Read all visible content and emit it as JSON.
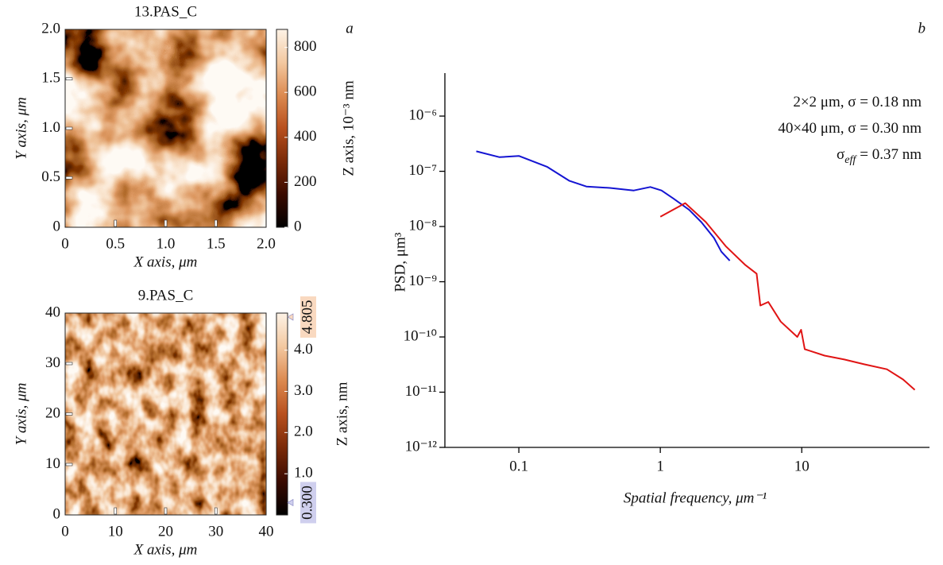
{
  "chart_data": [
    {
      "type": "heatmap",
      "title": "13.PAS_C",
      "panel_label": "a",
      "x_label": "X axis, μm",
      "y_label": "Y axis, μm",
      "xlim": [
        0,
        2
      ],
      "ylim": [
        0,
        2
      ],
      "xticks": [
        0,
        0.5,
        {
          "value": 1,
          "label": "1.0"
        },
        1.5,
        {
          "value": 2,
          "label": "2.0"
        }
      ],
      "yticks": [
        0,
        0.5,
        {
          "value": 1,
          "label": "1.0"
        },
        1.5,
        {
          "value": 2,
          "label": "2.0"
        }
      ],
      "colormap": [
        "#000000",
        "#3a0a00",
        "#7a2a08",
        "#b8501e",
        "#dc8a50",
        "#f3c8a0",
        "#fdf3e6"
      ],
      "colorbar": {
        "label": "Z axis, 10⁻³ nm",
        "zlim": [
          0,
          880
        ],
        "zticks": [
          0,
          200,
          400,
          600,
          800
        ]
      }
    },
    {
      "type": "heatmap",
      "title": "9.PAS_C",
      "x_label": "X axis, μm",
      "y_label": "Y axis, μm",
      "xlim": [
        0,
        40
      ],
      "ylim": [
        0,
        40
      ],
      "xticks": [
        0,
        10,
        20,
        30,
        40
      ],
      "yticks": [
        0,
        10,
        20,
        30,
        40
      ],
      "colormap": [
        "#000000",
        "#3a0a00",
        "#7a2a08",
        "#b8501e",
        "#dc8a50",
        "#f3c8a0",
        "#fdf3e6"
      ],
      "colorbar": {
        "label": "Z axis, nm",
        "zlim": [
          0,
          4.9
        ],
        "zticks": [
          {
            "value": 1,
            "label": "1.0"
          },
          {
            "value": 2,
            "label": "2.0"
          },
          {
            "value": 3,
            "label": "3.0"
          },
          {
            "value": 4,
            "label": "4.0"
          }
        ],
        "markers": [
          {
            "value": 4.805,
            "label": "4.805",
            "color": "#f9d9c0"
          },
          {
            "value": 0.3,
            "label": "0.300",
            "color": "#cfcfee"
          }
        ]
      }
    },
    {
      "type": "line",
      "panel_label": "b",
      "x_label": "Spatial frequency, μm⁻¹",
      "y_label": "PSD, μm³",
      "log_x": true,
      "log_y": true,
      "xlim": [
        0.03,
        80
      ],
      "ylim": [
        1e-12,
        6e-06
      ],
      "xticks": [
        0.1,
        1,
        10
      ],
      "yticks": [
        {
          "value": 1e-12,
          "label": "10⁻¹²"
        },
        {
          "value": 1e-11,
          "label": "10⁻¹¹"
        },
        {
          "value": 1e-10,
          "label": "10⁻¹⁰"
        },
        {
          "value": 1e-09,
          "label": "10⁻⁹"
        },
        {
          "value": 1e-08,
          "label": "10⁻⁸"
        },
        {
          "value": 1e-07,
          "label": "10⁻⁷"
        },
        {
          "value": 1e-06,
          "label": "10⁻⁶"
        }
      ],
      "series": [
        {
          "color": "#1414d2",
          "x": [
            0.05,
            0.073,
            0.1,
            0.159,
            0.228,
            0.3,
            0.44,
            0.65,
            0.85,
            1.02,
            1.24,
            1.6,
            1.95,
            2.4,
            2.7,
            3.1
          ],
          "values": [
            2.3e-07,
            1.8e-07,
            1.9e-07,
            1.2e-07,
            6.7e-08,
            5.3e-08,
            5e-08,
            4.5e-08,
            5.2e-08,
            4.5e-08,
            3.2e-08,
            2e-08,
            1.2e-08,
            6.2e-09,
            3.5e-09,
            2.4e-09
          ]
        },
        {
          "color": "#e01414",
          "x": [
            1.0,
            1.5,
            2.1,
            2.9,
            4.0,
            4.8,
            5.1,
            5.8,
            7.1,
            9.3,
            9.9,
            10.5,
            14.5,
            20,
            27.6,
            40,
            52,
            63
          ],
          "values": [
            1.5e-08,
            2.65e-08,
            1.2e-08,
            4.4e-09,
            2e-09,
            1.4e-09,
            3.7e-10,
            4.3e-10,
            1.9e-10,
            1e-10,
            1.35e-10,
            6e-11,
            4.6e-11,
            3.9e-11,
            3.2e-11,
            2.6e-11,
            1.7e-11,
            1.1e-11
          ]
        }
      ],
      "annotations": [
        {
          "text": "2×2 μm,  σ = 0.18 nm"
        },
        {
          "text": "40×40 μm,  σ = 0.30 nm"
        },
        {
          "symbol": "σ",
          "subscript": "eff",
          "text": "= 0.37 nm"
        }
      ]
    }
  ]
}
